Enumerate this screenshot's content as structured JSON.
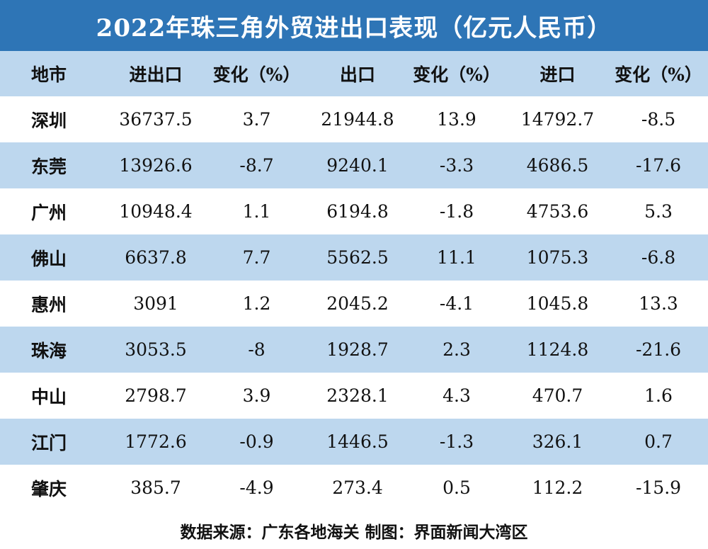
{
  "chart_data": {
    "type": "table",
    "title": "2022年珠三角外贸进出口表现（亿元人民币）",
    "columns": [
      "地市",
      "进出口",
      "变化（%）",
      "出口",
      "变化（%）",
      "进口",
      "变化（%）"
    ],
    "rows": [
      {
        "city": "深圳",
        "trade": "36737.5",
        "trade_change": "3.7",
        "export": "21944.8",
        "export_change": "13.9",
        "import": "14792.7",
        "import_change": "-8.5"
      },
      {
        "city": "东莞",
        "trade": "13926.6",
        "trade_change": "-8.7",
        "export": "9240.1",
        "export_change": "-3.3",
        "import": "4686.5",
        "import_change": "-17.6"
      },
      {
        "city": "广州",
        "trade": "10948.4",
        "trade_change": "1.1",
        "export": "6194.8",
        "export_change": "-1.8",
        "import": "4753.6",
        "import_change": "5.3"
      },
      {
        "city": "佛山",
        "trade": "6637.8",
        "trade_change": "7.7",
        "export": "5562.5",
        "export_change": "11.1",
        "import": "1075.3",
        "import_change": "-6.8"
      },
      {
        "city": "惠州",
        "trade": "3091",
        "trade_change": "1.2",
        "export": "2045.2",
        "export_change": "-4.1",
        "import": "1045.8",
        "import_change": "13.3"
      },
      {
        "city": "珠海",
        "trade": "3053.5",
        "trade_change": "-8",
        "export": "1928.7",
        "export_change": "2.3",
        "import": "1124.8",
        "import_change": "-21.6"
      },
      {
        "city": "中山",
        "trade": "2798.7",
        "trade_change": "3.9",
        "export": "2328.1",
        "export_change": "4.3",
        "import": "470.7",
        "import_change": "1.6"
      },
      {
        "city": "江门",
        "trade": "1772.6",
        "trade_change": "-0.9",
        "export": "1446.5",
        "export_change": "-1.3",
        "import": "326.1",
        "import_change": "0.7"
      },
      {
        "city": "肇庆",
        "trade": "385.7",
        "trade_change": "-4.9",
        "export": "273.4",
        "export_change": "0.5",
        "import": "112.2",
        "import_change": "-15.9"
      }
    ],
    "source": "数据来源：广东各地海关 制图：界面新闻大湾区",
    "colors": {
      "title_bg": "#2e75b6",
      "title_text": "#ffffff",
      "shaded_row": "#bdd7ee",
      "plain_row": "#ffffff"
    }
  }
}
